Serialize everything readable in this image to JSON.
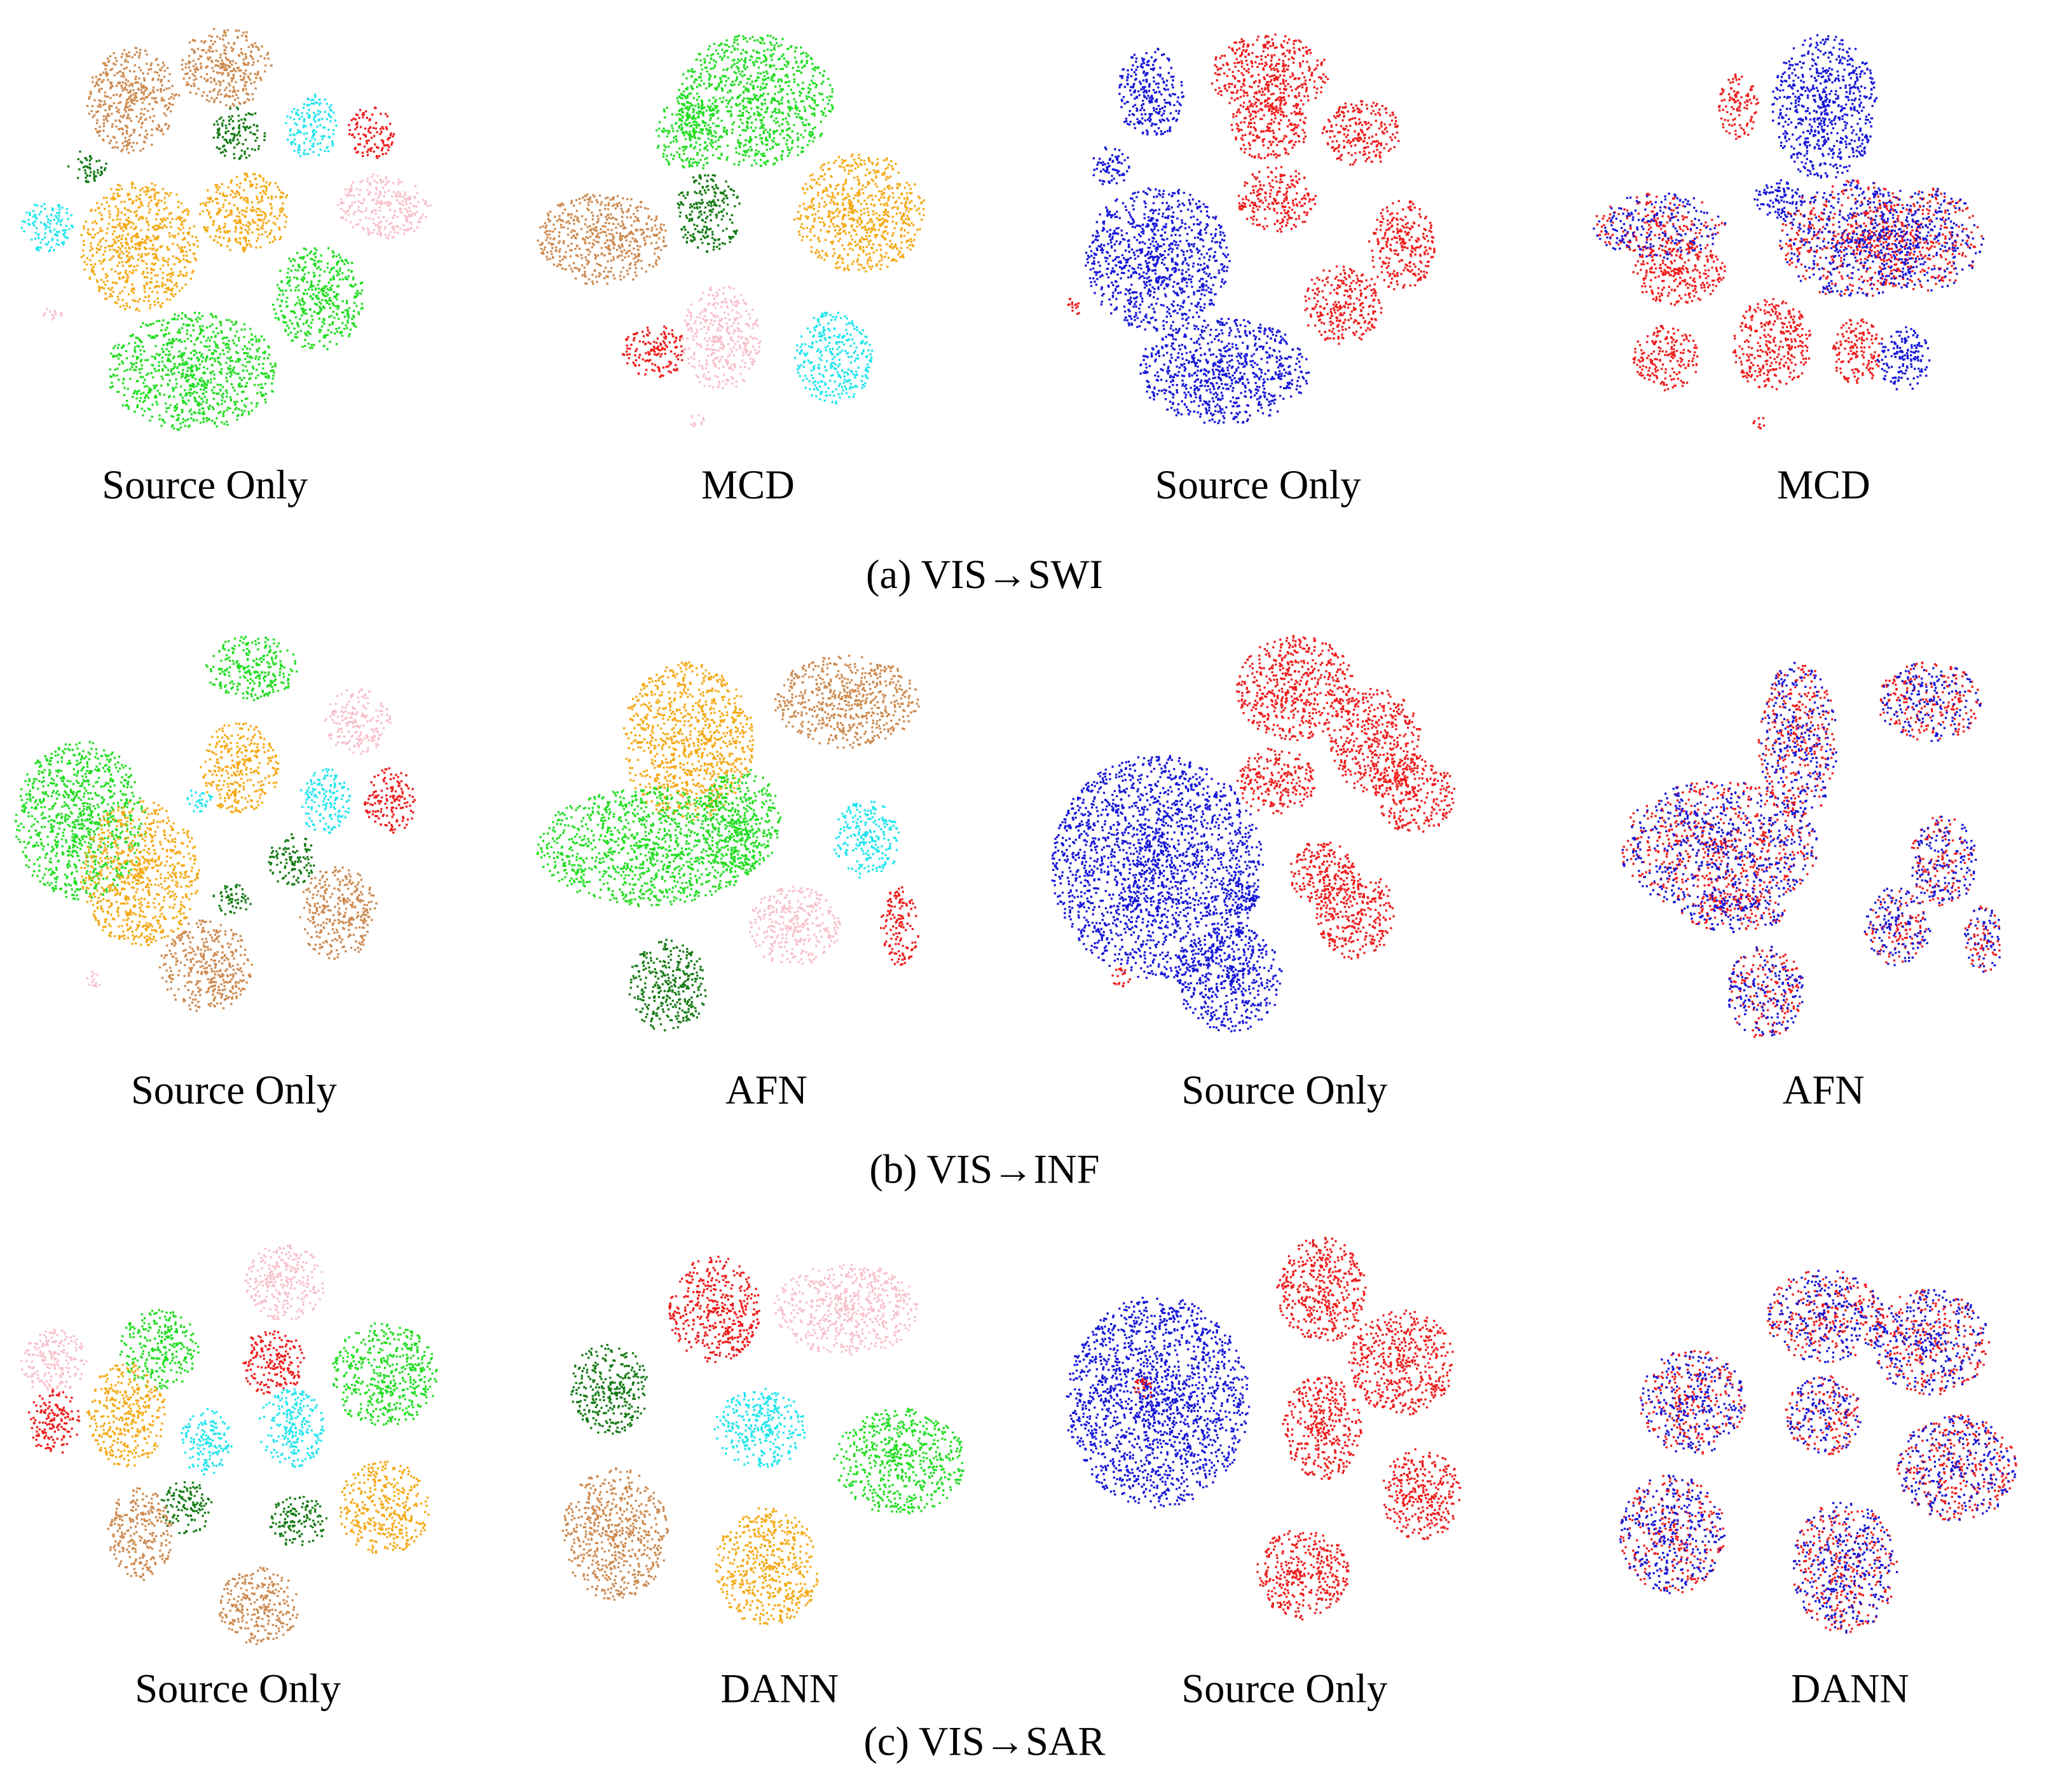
{
  "figure": {
    "rows": [
      {
        "caption": "(a) VIS→SWI",
        "panels": [
          "Source Only",
          "MCD",
          "Source Only",
          "MCD"
        ]
      },
      {
        "caption": "(b) VIS→INF",
        "panels": [
          "Source Only",
          "AFN",
          "Source Only",
          "AFN"
        ]
      },
      {
        "caption": "(c) VIS→SAR",
        "panels": [
          "Source Only",
          "DANN",
          "Source Only",
          "DANN"
        ]
      }
    ]
  }
}
